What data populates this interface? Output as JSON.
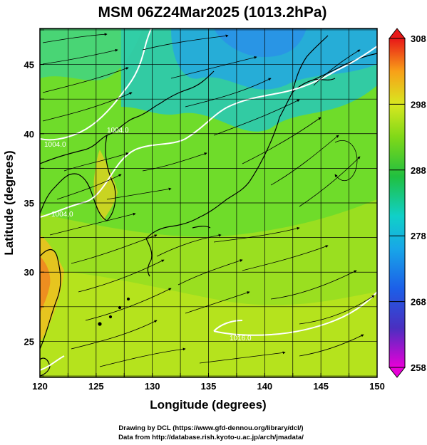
{
  "title": "MSM 06Z24Mar2025 (1013.2hPa)",
  "xlabel": "Longitude (degrees)",
  "ylabel": "Latitude  (degrees)",
  "x_ticks": [
    "120",
    "125",
    "130",
    "135",
    "140",
    "145",
    "150"
  ],
  "y_ticks": [
    "25",
    "30",
    "35",
    "40",
    "45"
  ],
  "colorbar": {
    "min": 258,
    "max": 308,
    "tick_labels": [
      "308",
      "298",
      "288",
      "278",
      "268",
      "258"
    ]
  },
  "contour_labels": [
    "1004.0",
    "1004.0",
    "1004.0",
    "1016.0"
  ],
  "credits": {
    "line1": "Drawing by DCL (https://www.gfd-dennou.org/library/dcl/)",
    "line2": "Data from http://database.rish.kyoto-u.ac.jp/arch/jmadata/"
  },
  "colors": {
    "land_outline": "#000000",
    "isobar": "#ffffff",
    "grid": "#000000",
    "wind_vectors": "#000000"
  },
  "map": {
    "lon_range": [
      120,
      150
    ],
    "lat_range": [
      22.4,
      47.6
    ],
    "lon_tick_values": [
      120,
      125,
      130,
      135,
      140,
      145,
      150
    ],
    "lat_tick_values": [
      25,
      30,
      35,
      40,
      45
    ]
  }
}
